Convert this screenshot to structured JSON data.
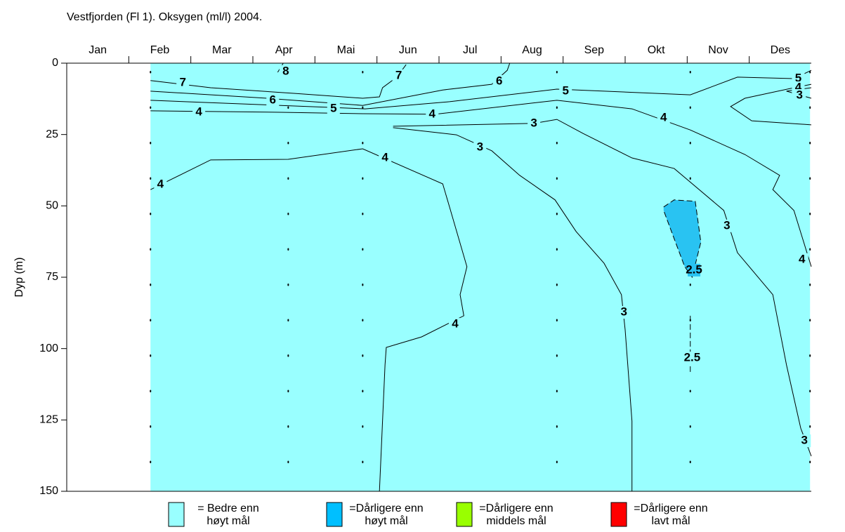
{
  "chart_data": {
    "type": "contour",
    "title": "Vestfjorden (Fl 1). Oksygen (ml/l) 2004.",
    "y_label": "Dyp (m)",
    "categories": [
      "Jan",
      "Feb",
      "Mar",
      "Apr",
      "Mai",
      "Jun",
      "Jul",
      "Aug",
      "Sep",
      "Okt",
      "Nov",
      "Des"
    ],
    "xlim": [
      0,
      12
    ],
    "ylim": [
      0,
      150
    ],
    "yticks": [
      0,
      25,
      50,
      75,
      100,
      125,
      150
    ],
    "background_color": "#99ffff",
    "data_x": [
      1.35,
      11.98
    ],
    "samples": [
      1.35,
      3.57,
      4.77,
      7.9,
      10.05,
      11.98
    ],
    "contours": [
      {
        "level": 8,
        "x": [
          3.4,
          3.49
        ],
        "y": [
          3.2,
          0
        ],
        "labels": [
          [
            3.53,
            2.9
          ]
        ]
      },
      {
        "level": 7,
        "x": [
          1.35,
          2.32,
          3.68,
          4.77,
          5.04,
          5.09,
          5.32,
          5.47
        ],
        "y": [
          6.1,
          8.6,
          10.6,
          12.3,
          11.8,
          8.6,
          4.9,
          0.5
        ],
        "labels": [
          [
            1.87,
            6.9
          ],
          [
            5.35,
            4.4
          ]
        ]
      },
      {
        "level": 6,
        "x": [
          1.35,
          3.23,
          4.77,
          6.06,
          6.85,
          7.1,
          7.14
        ],
        "y": [
          9.8,
          12.3,
          14.8,
          9.4,
          7.4,
          2.5,
          0
        ],
        "labels": [
          [
            3.32,
            13.0
          ],
          [
            6.97,
            6.4
          ]
        ]
      },
      {
        "level": 5,
        "x": [
          1.35,
          4.24,
          4.81,
          6.17,
          7.9,
          10.05,
          10.81,
          11.72,
          12.0
        ],
        "y": [
          13.0,
          15.5,
          16.0,
          13.5,
          9.1,
          11.1,
          4.9,
          5.4,
          2.5
        ],
        "labels": [
          [
            4.3,
            16.0
          ],
          [
            8.04,
            9.8
          ],
          [
            11.79,
            5.4
          ]
        ]
      },
      {
        "level": 4,
        "x": [
          1.35,
          3.45,
          4.77,
          5.94,
          7.9,
          9.11,
          10.05,
          10.93,
          11.49,
          11.38,
          11.72,
          12.0
        ],
        "y": [
          16.7,
          17.2,
          17.7,
          17.9,
          13.0,
          16.0,
          23.4,
          32.0,
          39.3,
          44.3,
          51.6,
          71.3
        ],
        "labels": [
          [
            2.13,
            17.2
          ],
          [
            5.89,
            17.9
          ],
          [
            9.62,
            19.2
          ],
          [
            11.85,
            68.8
          ]
        ]
      },
      {
        "level": 4,
        "x": [
          12,
          11.04,
          10.7,
          10.93,
          11.72,
          12
        ],
        "y": [
          21.6,
          20.2,
          15.2,
          12.3,
          8.6,
          7.4
        ],
        "labels": [
          [
            11.79,
            8.6
          ]
        ]
      },
      {
        "level": 3,
        "x": [
          12,
          11.6,
          12
        ],
        "y": [
          12.3,
          9.8,
          8.6
        ],
        "labels": [
          [
            11.81,
            11.3
          ]
        ]
      },
      {
        "level": 4,
        "x": [
          1.35,
          2.32,
          3.57,
          4.77,
          6.06,
          6.17,
          6.45,
          6.34,
          6.4,
          5.72,
          5.15,
          5.13,
          5.04
        ],
        "y": [
          44.3,
          33.9,
          33.7,
          30.0,
          42.3,
          50.4,
          71.3,
          81.1,
          88.5,
          95.9,
          99.6,
          105.7,
          150
        ],
        "labels": [
          [
            1.51,
            42.5
          ],
          [
            5.13,
            33.2
          ],
          [
            6.26,
            91.5
          ]
        ]
      },
      {
        "level": 3,
        "x": [
          5.26,
          7.53,
          7.9,
          8.32,
          9.11,
          9.79,
          10.59,
          10.81,
          11.38,
          11.6,
          11.83,
          12
        ],
        "y": [
          22.1,
          21.1,
          19.7,
          24.6,
          33.2,
          36.9,
          51.6,
          66.4,
          81.1,
          105.7,
          127.9,
          137.7
        ],
        "labels": [
          [
            7.53,
            21.1
          ],
          [
            10.64,
            57.0
          ],
          [
            11.89,
            132.3
          ]
        ]
      },
      {
        "level": 3,
        "x": [
          5.26,
          6.28,
          6.85,
          7.3,
          7.87,
          8.21,
          8.66,
          8.94,
          9.0,
          9.11,
          9.11
        ],
        "y": [
          22.6,
          25.1,
          30.7,
          39.3,
          47.9,
          59.0,
          70.1,
          81.1,
          93.4,
          125.4,
          150
        ],
        "labels": [
          [
            6.66,
            29.5
          ],
          [
            8.98,
            87.3
          ]
        ]
      },
      {
        "level": 2.5,
        "fill": "#29c3f2",
        "dashed": true,
        "x": [
          9.62,
          9.79,
          10.13,
          10.22,
          10.08,
          9.96,
          9.79,
          9.62
        ],
        "y": [
          50.4,
          47.9,
          48.4,
          62.7,
          75.0,
          71.3,
          61.5,
          51.6
        ],
        "labels": [
          [
            10.11,
            72.5
          ]
        ]
      },
      {
        "level": 2.5,
        "dashed": true,
        "x": [
          10.05,
          10.05
        ],
        "y": [
          88.5,
          108.2
        ],
        "labels": [
          [
            10.08,
            103.3
          ]
        ]
      }
    ],
    "legend": [
      {
        "color": "#99ffff",
        "label": [
          "= Bedre enn",
          "høyt mål"
        ]
      },
      {
        "color": "#00bfff",
        "label": [
          "=Dårligere enn",
          "høyt mål"
        ]
      },
      {
        "color": "#99ff00",
        "label": [
          "=Dårligere enn",
          "middels mål"
        ]
      },
      {
        "color": "#ff0000",
        "label": [
          "=Dårligere enn",
          "lavt mål"
        ]
      }
    ]
  }
}
